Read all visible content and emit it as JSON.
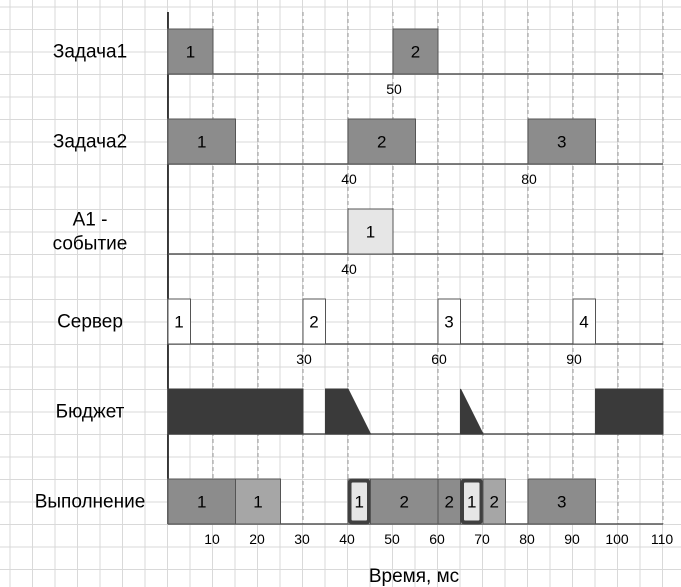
{
  "axis": {
    "title": "Время, мс",
    "ticks": [
      10,
      20,
      30,
      40,
      50,
      60,
      70,
      80,
      90,
      100,
      110
    ],
    "t_max": 110
  },
  "colors": {
    "periodic": "#8c8c8c",
    "event": "#e6e6e6",
    "server": "#ffffff",
    "budget": "#3a3a3a",
    "highlight": "#404040",
    "exec_light": "#a6a6a6",
    "border": "#555555"
  },
  "rows": [
    {
      "label": [
        "Задача1"
      ],
      "blocks": [
        {
          "start": 0,
          "end": 10,
          "text": "1",
          "style": "periodic"
        },
        {
          "start": 50,
          "end": 60,
          "text": "2",
          "style": "periodic"
        }
      ],
      "markers": [
        {
          "t": 50,
          "text": "50"
        }
      ]
    },
    {
      "label": [
        "Задача2"
      ],
      "blocks": [
        {
          "start": 0,
          "end": 15,
          "text": "1",
          "style": "periodic"
        },
        {
          "start": 40,
          "end": 55,
          "text": "2",
          "style": "periodic"
        },
        {
          "start": 80,
          "end": 95,
          "text": "3",
          "style": "periodic"
        }
      ],
      "markers": [
        {
          "t": 40,
          "text": "40"
        },
        {
          "t": 80,
          "text": "80"
        }
      ]
    },
    {
      "label": [
        "A1 -",
        "событие"
      ],
      "blocks": [
        {
          "start": 40,
          "end": 50,
          "text": "1",
          "style": "event"
        }
      ],
      "markers": [
        {
          "t": 40,
          "text": "40"
        }
      ]
    },
    {
      "label": [
        "Сервер"
      ],
      "blocks": [
        {
          "start": 0,
          "end": 5,
          "text": "1",
          "style": "server"
        },
        {
          "start": 30,
          "end": 35,
          "text": "2",
          "style": "server"
        },
        {
          "start": 60,
          "end": 65,
          "text": "3",
          "style": "server"
        },
        {
          "start": 90,
          "end": 95,
          "text": "4",
          "style": "server"
        }
      ],
      "markers": [
        {
          "t": 30,
          "text": "30"
        },
        {
          "t": 60,
          "text": "60"
        },
        {
          "t": 90,
          "text": "90"
        }
      ]
    },
    {
      "label": [
        "Бюджет"
      ],
      "budget": [
        {
          "points": [
            [
              0,
              1
            ],
            [
              30,
              1
            ],
            [
              30,
              0
            ],
            [
              0,
              0
            ]
          ]
        },
        {
          "points": [
            [
              35,
              1
            ],
            [
              40,
              1
            ],
            [
              45,
              0
            ],
            [
              35,
              0
            ]
          ]
        },
        {
          "points": [
            [
              65,
              1
            ],
            [
              70,
              0
            ],
            [
              65,
              0
            ]
          ]
        },
        {
          "points": [
            [
              95,
              1
            ],
            [
              110,
              1
            ],
            [
              110,
              0
            ],
            [
              95,
              0
            ]
          ]
        }
      ],
      "markers": []
    },
    {
      "label": [
        "Выполнение"
      ],
      "blocks": [
        {
          "start": 0,
          "end": 15,
          "text": "1",
          "style": "periodic"
        },
        {
          "start": 15,
          "end": 25,
          "text": "1",
          "style": "exec_light"
        },
        {
          "start": 40,
          "end": 45,
          "text": "1",
          "style": "event",
          "highlight": true
        },
        {
          "start": 45,
          "end": 60,
          "text": "2",
          "style": "periodic"
        },
        {
          "start": 60,
          "end": 65,
          "text": "2",
          "style": "periodic"
        },
        {
          "start": 65,
          "end": 70,
          "text": "1",
          "style": "event",
          "highlight": true
        },
        {
          "start": 70,
          "end": 75,
          "text": "2",
          "style": "exec_light"
        },
        {
          "start": 80,
          "end": 95,
          "text": "3",
          "style": "periodic"
        }
      ],
      "markers": []
    }
  ]
}
